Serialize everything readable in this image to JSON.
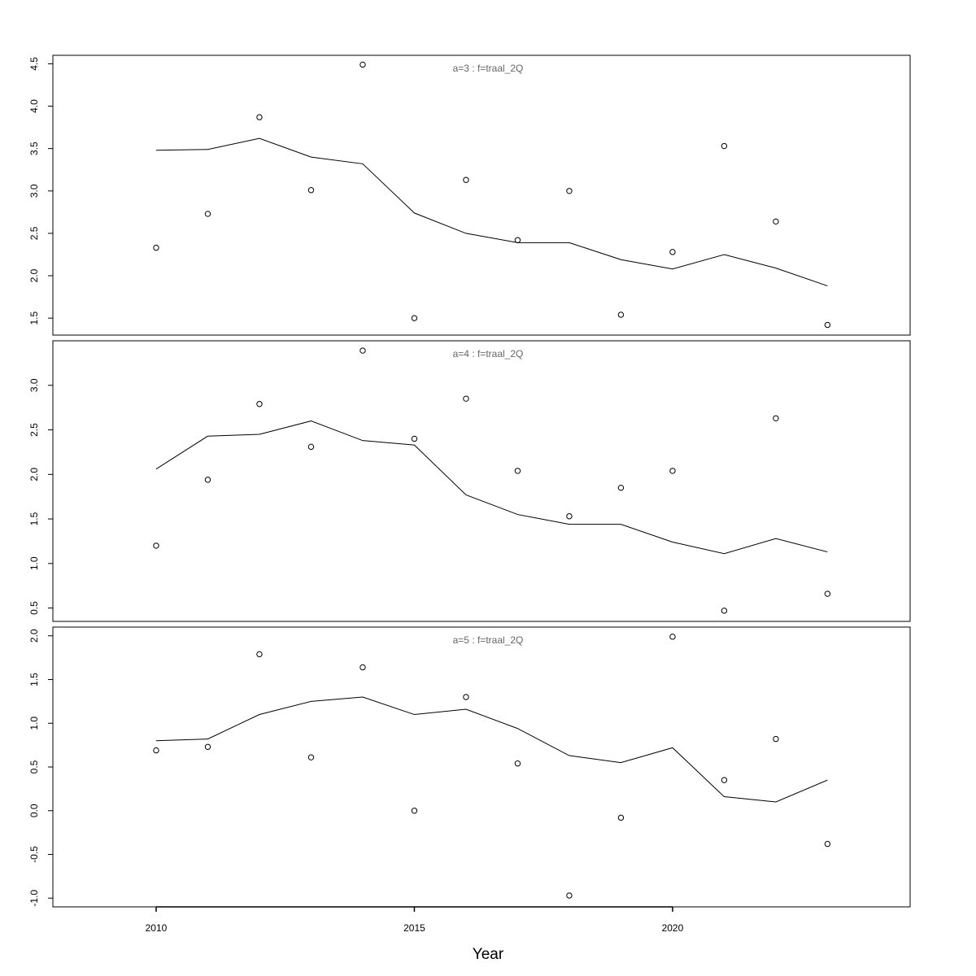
{
  "chart_data": {
    "type": "line",
    "xlabel": "Year",
    "x_ticks": [
      2010,
      2015,
      2020
    ],
    "xlim": [
      2008,
      2024.6
    ],
    "panels": [
      {
        "title": "a=3  :  f=traal_2Q",
        "ylim": [
          1.3,
          4.6
        ],
        "y_ticks": [
          1.5,
          2.0,
          2.5,
          3.0,
          3.5,
          4.0,
          4.5
        ],
        "y_tick_labels": [
          "1.5",
          "2.0",
          "2.5",
          "3.0",
          "3.5",
          "4.0",
          "4.5"
        ],
        "x": [
          2010,
          2011,
          2012,
          2013,
          2014,
          2015,
          2016,
          2017,
          2018,
          2019,
          2020,
          2021,
          2022,
          2023
        ],
        "fitted": [
          3.48,
          3.49,
          3.62,
          3.4,
          3.32,
          2.74,
          2.5,
          2.39,
          2.39,
          2.19,
          2.08,
          2.25,
          2.09,
          1.88
        ],
        "observed": [
          2.33,
          2.73,
          3.87,
          3.01,
          4.49,
          1.5,
          3.13,
          2.42,
          3.0,
          1.54,
          2.28,
          3.53,
          2.64,
          1.42
        ]
      },
      {
        "title": "a=4  :  f=traal_2Q",
        "ylim": [
          0.35,
          3.5
        ],
        "y_ticks": [
          0.5,
          1.0,
          1.5,
          2.0,
          2.5,
          3.0
        ],
        "y_tick_labels": [
          "0.5",
          "1.0",
          "1.5",
          "2.0",
          "2.5",
          "3.0"
        ],
        "x": [
          2010,
          2011,
          2012,
          2013,
          2014,
          2015,
          2016,
          2017,
          2018,
          2019,
          2020,
          2021,
          2022,
          2023
        ],
        "fitted": [
          2.06,
          2.43,
          2.45,
          2.6,
          2.38,
          2.33,
          1.77,
          1.55,
          1.44,
          1.44,
          1.24,
          1.11,
          1.28,
          1.13
        ],
        "observed": [
          1.2,
          1.94,
          2.79,
          2.31,
          3.39,
          2.4,
          2.85,
          2.04,
          1.53,
          1.85,
          2.04,
          0.47,
          2.63,
          0.66
        ]
      },
      {
        "title": "a=5  :  f=traal_2Q",
        "ylim": [
          -1.1,
          2.1
        ],
        "y_ticks": [
          -1.0,
          -0.5,
          0.0,
          0.5,
          1.0,
          1.5,
          2.0
        ],
        "y_tick_labels": [
          "-1.0",
          "-0.5",
          "0.0",
          "0.5",
          "1.0",
          "1.5",
          "2.0"
        ],
        "x": [
          2010,
          2011,
          2012,
          2013,
          2014,
          2015,
          2016,
          2017,
          2018,
          2019,
          2020,
          2021,
          2022,
          2023
        ],
        "fitted": [
          0.8,
          0.82,
          1.1,
          1.25,
          1.3,
          1.1,
          1.16,
          0.94,
          0.63,
          0.55,
          0.72,
          0.16,
          0.1,
          0.35
        ],
        "observed": [
          0.69,
          0.73,
          1.79,
          0.61,
          1.64,
          0.0,
          1.3,
          0.54,
          -0.97,
          -0.08,
          1.99,
          0.35,
          0.82,
          -0.38
        ]
      }
    ]
  }
}
